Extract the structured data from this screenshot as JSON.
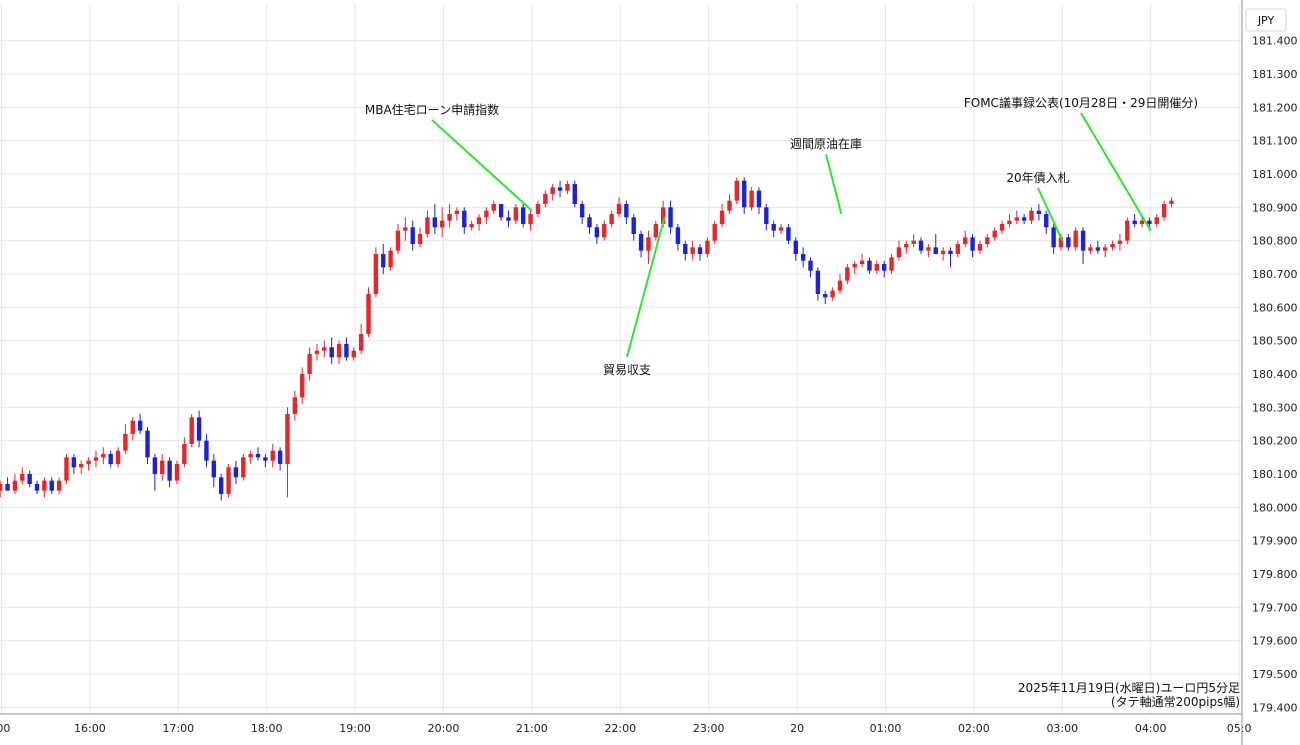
{
  "currency_label": "JPY",
  "caption_line1": "2025年11月19日(水曜日)ユーロ円5分足",
  "caption_line2": "(タテ軸通常200pips幅)",
  "colors": {
    "up": "#e8262a",
    "down": "#1c22d6",
    "annotation_line": "#2ee62e",
    "grid": "#e3eaf0"
  },
  "chart_data": {
    "type": "candlestick",
    "title": "",
    "xlabel": "",
    "ylabel": "",
    "ylim": [
      179.38,
      181.51
    ],
    "xlim": [
      "15:00",
      "05:05"
    ],
    "grid": true,
    "legend": "none",
    "y_ticks": [
      "181.400",
      "181.300",
      "181.200",
      "181.100",
      "181.000",
      "180.900",
      "180.800",
      "180.700",
      "180.600",
      "180.500",
      "180.400",
      "180.300",
      "180.200",
      "180.100",
      "180.000",
      "179.900",
      "179.800",
      "179.700",
      "179.600",
      "179.500",
      "179.400"
    ],
    "x_ticks": [
      {
        "label": ":00",
        "time": "15:00"
      },
      {
        "label": "16:00",
        "time": "16:00"
      },
      {
        "label": "17:00",
        "time": "17:00"
      },
      {
        "label": "18:00",
        "time": "18:00"
      },
      {
        "label": "19:00",
        "time": "19:00"
      },
      {
        "label": "20:00",
        "time": "20:00"
      },
      {
        "label": "21:00",
        "time": "21:00"
      },
      {
        "label": "22:00",
        "time": "22:00"
      },
      {
        "label": "23:00",
        "time": "23:00"
      },
      {
        "label": "20",
        "time": "00:00"
      },
      {
        "label": "01:00",
        "time": "01:00"
      },
      {
        "label": "02:00",
        "time": "02:00"
      },
      {
        "label": "03:00",
        "time": "03:00"
      },
      {
        "label": "04:00",
        "time": "04:00"
      },
      {
        "label": "05:0",
        "time": "05:00"
      }
    ],
    "annotations": [
      {
        "text": "MBA住宅ローン申請指数",
        "time": "21:00",
        "price": 180.89
      },
      {
        "text": "貿易収支",
        "time": "22:30",
        "price": 180.87
      },
      {
        "text": "週間原油在庫",
        "time": "00:30",
        "price": 180.88
      },
      {
        "text": "20年債入札",
        "time": "03:00",
        "price": 180.8
      },
      {
        "text": "FOMC議事録公表(10月28日・29日開催分)",
        "time": "04:00",
        "price": 180.83
      }
    ],
    "candles": [
      [
        180.05,
        180.08,
        180.03,
        180.07
      ],
      [
        180.07,
        180.09,
        180.05,
        180.05
      ],
      [
        180.05,
        180.1,
        180.04,
        180.08
      ],
      [
        180.08,
        180.12,
        180.07,
        180.1
      ],
      [
        180.1,
        180.11,
        180.06,
        180.07
      ],
      [
        180.07,
        180.08,
        180.04,
        180.05
      ],
      [
        180.05,
        180.09,
        180.03,
        180.08
      ],
      [
        180.08,
        180.09,
        180.04,
        180.05
      ],
      [
        180.05,
        180.09,
        180.04,
        180.08
      ],
      [
        180.08,
        180.16,
        180.07,
        180.15
      ],
      [
        180.15,
        180.16,
        180.1,
        180.12
      ],
      [
        180.12,
        180.14,
        180.1,
        180.13
      ],
      [
        180.13,
        180.15,
        180.11,
        180.14
      ],
      [
        180.14,
        180.17,
        180.12,
        180.15
      ],
      [
        180.15,
        180.18,
        180.13,
        180.16
      ],
      [
        180.16,
        180.17,
        180.12,
        180.13
      ],
      [
        180.13,
        180.18,
        180.12,
        180.17
      ],
      [
        180.17,
        180.25,
        180.16,
        180.22
      ],
      [
        180.22,
        180.27,
        180.2,
        180.26
      ],
      [
        180.26,
        180.28,
        180.22,
        180.23
      ],
      [
        180.23,
        180.24,
        180.13,
        180.15
      ],
      [
        180.15,
        180.16,
        180.05,
        180.1
      ],
      [
        180.1,
        180.16,
        180.08,
        180.14
      ],
      [
        180.14,
        180.15,
        180.06,
        180.08
      ],
      [
        180.08,
        180.14,
        180.07,
        180.13
      ],
      [
        180.13,
        180.21,
        180.12,
        180.19
      ],
      [
        180.19,
        180.28,
        180.18,
        180.27
      ],
      [
        180.27,
        180.29,
        180.18,
        180.2
      ],
      [
        180.2,
        180.22,
        180.12,
        180.14
      ],
      [
        180.14,
        180.16,
        180.06,
        180.09
      ],
      [
        180.09,
        180.1,
        180.02,
        180.04
      ],
      [
        180.04,
        180.13,
        180.03,
        180.12
      ],
      [
        180.12,
        180.14,
        180.07,
        180.09
      ],
      [
        180.09,
        180.16,
        180.08,
        180.15
      ],
      [
        180.15,
        180.17,
        180.13,
        180.16
      ],
      [
        180.16,
        180.18,
        180.14,
        180.15
      ],
      [
        180.15,
        180.16,
        180.12,
        180.14
      ],
      [
        180.14,
        180.19,
        180.12,
        180.17
      ],
      [
        180.17,
        180.18,
        180.11,
        180.13
      ],
      [
        180.13,
        180.3,
        180.03,
        180.28
      ],
      [
        180.28,
        180.35,
        180.26,
        180.33
      ],
      [
        180.33,
        180.42,
        180.31,
        180.4
      ],
      [
        180.4,
        180.48,
        180.38,
        180.46
      ],
      [
        180.46,
        180.49,
        180.44,
        180.47
      ],
      [
        180.47,
        180.5,
        180.45,
        180.48
      ],
      [
        180.48,
        180.51,
        180.43,
        180.45
      ],
      [
        180.45,
        180.5,
        180.43,
        180.49
      ],
      [
        180.49,
        180.51,
        180.44,
        180.45
      ],
      [
        180.45,
        180.48,
        180.44,
        180.47
      ],
      [
        180.47,
        180.55,
        180.46,
        180.52
      ],
      [
        180.52,
        180.66,
        180.51,
        180.64
      ],
      [
        180.64,
        180.78,
        180.63,
        180.76
      ],
      [
        180.76,
        180.79,
        180.7,
        180.72
      ],
      [
        180.72,
        180.78,
        180.71,
        180.77
      ],
      [
        180.77,
        180.85,
        180.76,
        180.83
      ],
      [
        180.83,
        180.87,
        180.8,
        180.84
      ],
      [
        180.84,
        180.86,
        180.77,
        180.79
      ],
      [
        180.79,
        180.84,
        180.78,
        180.82
      ],
      [
        180.82,
        180.89,
        180.81,
        180.87
      ],
      [
        180.87,
        180.91,
        180.82,
        180.84
      ],
      [
        180.84,
        180.9,
        180.81,
        180.86
      ],
      [
        180.86,
        180.91,
        180.84,
        180.88
      ],
      [
        180.88,
        180.9,
        180.86,
        180.89
      ],
      [
        180.89,
        180.9,
        180.82,
        180.84
      ],
      [
        180.84,
        180.86,
        180.83,
        180.85
      ],
      [
        180.85,
        180.88,
        180.83,
        180.87
      ],
      [
        180.87,
        180.9,
        180.85,
        180.89
      ],
      [
        180.89,
        180.92,
        180.88,
        180.91
      ],
      [
        180.91,
        180.91,
        180.86,
        180.87
      ],
      [
        180.87,
        180.89,
        180.84,
        180.86
      ],
      [
        180.86,
        180.91,
        180.85,
        180.9
      ],
      [
        180.9,
        180.91,
        180.84,
        180.85
      ],
      [
        180.85,
        180.89,
        180.83,
        180.88
      ],
      [
        180.88,
        180.92,
        180.87,
        180.91
      ],
      [
        180.91,
        180.95,
        180.9,
        180.94
      ],
      [
        180.94,
        180.97,
        180.92,
        180.96
      ],
      [
        180.96,
        180.98,
        180.93,
        180.95
      ],
      [
        180.95,
        180.98,
        180.94,
        180.97
      ],
      [
        180.97,
        180.98,
        180.9,
        180.91
      ],
      [
        180.91,
        180.92,
        180.85,
        180.87
      ],
      [
        180.87,
        180.88,
        180.82,
        180.84
      ],
      [
        180.84,
        180.85,
        180.79,
        180.81
      ],
      [
        180.81,
        180.86,
        180.8,
        180.85
      ],
      [
        180.85,
        180.89,
        180.84,
        180.88
      ],
      [
        180.88,
        180.93,
        180.87,
        180.91
      ],
      [
        180.91,
        180.92,
        180.85,
        180.87
      ],
      [
        180.87,
        180.88,
        180.8,
        180.82
      ],
      [
        180.82,
        180.83,
        180.75,
        180.77
      ],
      [
        180.77,
        180.83,
        180.73,
        180.81
      ],
      [
        180.81,
        180.86,
        180.8,
        180.85
      ],
      [
        180.85,
        180.92,
        180.84,
        180.9
      ],
      [
        180.9,
        180.92,
        180.82,
        180.84
      ],
      [
        180.84,
        180.85,
        180.77,
        180.79
      ],
      [
        180.79,
        180.8,
        180.74,
        180.76
      ],
      [
        180.76,
        180.8,
        180.74,
        180.78
      ],
      [
        180.78,
        180.79,
        180.74,
        180.76
      ],
      [
        180.76,
        180.81,
        180.75,
        180.8
      ],
      [
        180.8,
        180.86,
        180.79,
        180.85
      ],
      [
        180.85,
        180.91,
        180.84,
        180.89
      ],
      [
        180.89,
        180.94,
        180.88,
        180.92
      ],
      [
        180.92,
        180.99,
        180.91,
        180.98
      ],
      [
        180.98,
        180.99,
        180.88,
        180.9
      ],
      [
        180.9,
        180.96,
        180.89,
        180.95
      ],
      [
        180.95,
        180.96,
        180.88,
        180.9
      ],
      [
        180.9,
        180.91,
        180.83,
        180.85
      ],
      [
        180.85,
        180.86,
        180.81,
        180.83
      ],
      [
        180.83,
        180.85,
        180.82,
        180.84
      ],
      [
        180.84,
        180.85,
        180.79,
        180.8
      ],
      [
        180.8,
        180.81,
        180.74,
        180.76
      ],
      [
        180.76,
        180.78,
        180.72,
        180.74
      ],
      [
        180.74,
        180.75,
        180.69,
        180.71
      ],
      [
        180.71,
        180.72,
        180.62,
        180.64
      ],
      [
        180.64,
        180.65,
        180.61,
        180.63
      ],
      [
        180.63,
        180.66,
        180.62,
        180.65
      ],
      [
        180.65,
        180.7,
        180.64,
        180.68
      ],
      [
        180.68,
        180.73,
        180.67,
        180.72
      ],
      [
        180.72,
        180.74,
        180.7,
        180.73
      ],
      [
        180.73,
        180.76,
        180.72,
        180.74
      ],
      [
        180.74,
        180.75,
        180.7,
        180.71
      ],
      [
        180.71,
        180.74,
        180.7,
        180.73
      ],
      [
        180.73,
        180.74,
        180.69,
        180.71
      ],
      [
        180.71,
        180.76,
        180.7,
        180.75
      ],
      [
        180.75,
        180.8,
        180.74,
        180.78
      ],
      [
        180.78,
        180.8,
        180.76,
        180.79
      ],
      [
        180.79,
        180.82,
        180.78,
        180.8
      ],
      [
        180.8,
        180.81,
        180.76,
        180.77
      ],
      [
        180.77,
        180.79,
        180.75,
        180.78
      ],
      [
        180.78,
        180.82,
        180.76,
        180.76
      ],
      [
        180.76,
        180.78,
        180.74,
        180.77
      ],
      [
        180.77,
        180.78,
        180.72,
        180.76
      ],
      [
        180.76,
        180.8,
        180.75,
        180.79
      ],
      [
        180.79,
        180.83,
        180.78,
        180.81
      ],
      [
        180.81,
        180.82,
        180.75,
        180.77
      ],
      [
        180.77,
        180.8,
        180.76,
        180.79
      ],
      [
        180.79,
        180.82,
        180.78,
        180.81
      ],
      [
        180.81,
        180.84,
        180.8,
        180.83
      ],
      [
        180.83,
        180.86,
        180.82,
        180.85
      ],
      [
        180.85,
        180.88,
        180.84,
        180.86
      ],
      [
        180.86,
        180.89,
        180.85,
        180.87
      ],
      [
        180.87,
        180.88,
        180.85,
        180.86
      ],
      [
        180.86,
        180.9,
        180.85,
        180.89
      ],
      [
        180.89,
        180.91,
        180.86,
        180.88
      ],
      [
        180.88,
        180.89,
        180.82,
        180.84
      ],
      [
        180.84,
        180.85,
        180.76,
        180.78
      ],
      [
        180.78,
        180.82,
        180.77,
        180.81
      ],
      [
        180.81,
        180.82,
        180.77,
        180.78
      ],
      [
        180.78,
        180.84,
        180.77,
        180.83
      ],
      [
        180.83,
        180.84,
        180.73,
        180.77
      ],
      [
        180.77,
        180.79,
        180.76,
        180.78
      ],
      [
        180.78,
        180.8,
        180.76,
        180.77
      ],
      [
        180.77,
        180.79,
        180.75,
        180.78
      ],
      [
        180.78,
        180.8,
        180.77,
        180.79
      ],
      [
        180.79,
        180.82,
        180.77,
        180.8
      ],
      [
        180.8,
        180.87,
        180.79,
        180.86
      ],
      [
        180.86,
        180.88,
        180.84,
        180.85
      ],
      [
        180.85,
        180.87,
        180.84,
        180.86
      ],
      [
        180.86,
        180.87,
        180.83,
        180.85
      ],
      [
        180.85,
        180.88,
        180.84,
        180.87
      ],
      [
        180.87,
        180.92,
        180.86,
        180.91
      ],
      [
        180.91,
        180.93,
        180.9,
        180.92
      ]
    ]
  }
}
